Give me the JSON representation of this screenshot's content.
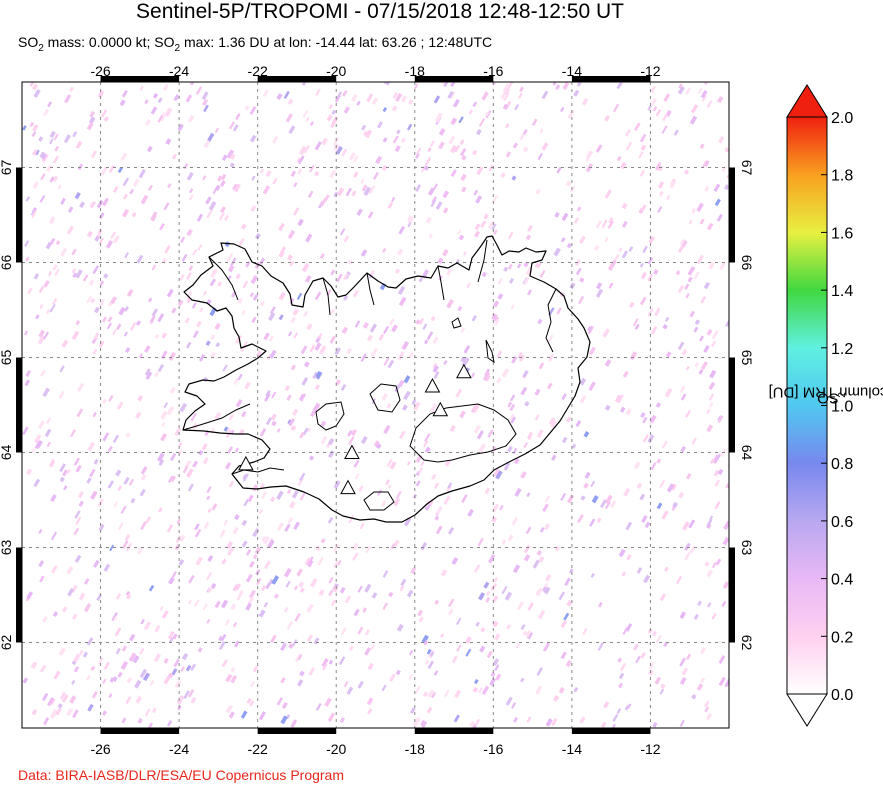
{
  "header": {
    "title": "Sentinel-5P/TROPOMI - 07/15/2018 12:48-12:50 UT",
    "subtitle_parts": [
      "SO",
      "2",
      " mass: 0.0000 kt; SO",
      "2",
      " max: 1.36 DU at lon: -14.44 lat: 63.26 ; 12:48UTC"
    ]
  },
  "map": {
    "lon_range": [
      -28,
      -10
    ],
    "lat_range": [
      61.1,
      67.9
    ],
    "lon_ticks": [
      "-26",
      "-24",
      "-22",
      "-20",
      "-18",
      "-16",
      "-14",
      "-12"
    ],
    "lon_tick_values": [
      -26,
      -24,
      -22,
      -20,
      -18,
      -16,
      -14,
      -12
    ],
    "lat_ticks": [
      "62",
      "63",
      "64",
      "65",
      "66",
      "67"
    ],
    "lat_tick_values": [
      62,
      63,
      64,
      65,
      66,
      67
    ],
    "grid": true,
    "grid_style": "dashed",
    "volcanoes": [
      {
        "lon": -22.3,
        "lat": 63.88
      },
      {
        "lon": -19.6,
        "lat": 64.0
      },
      {
        "lon": -19.7,
        "lat": 63.63
      },
      {
        "lon": -17.55,
        "lat": 64.7
      },
      {
        "lon": -17.35,
        "lat": 64.45
      },
      {
        "lon": -16.75,
        "lat": 64.85
      }
    ],
    "colors": {
      "coastline": "#000000",
      "grid": "#888888",
      "frame": "#000000"
    }
  },
  "colorbar": {
    "label_parts": [
      "SO",
      "2",
      " column TRM [DU]"
    ],
    "ticks": [
      "0.0",
      "0.2",
      "0.4",
      "0.6",
      "0.8",
      "1.0",
      "1.2",
      "1.4",
      "1.6",
      "1.8",
      "2.0"
    ],
    "tick_values": [
      0,
      0.2,
      0.4,
      0.6,
      0.8,
      1.0,
      1.2,
      1.4,
      1.6,
      1.8,
      2.0
    ],
    "range": [
      0,
      2.0
    ],
    "colors": [
      "#ffffff",
      "#ffd0f0",
      "#e8b8f5",
      "#b8a8f0",
      "#7888ee",
      "#50c8f0",
      "#60f0e0",
      "#40d840",
      "#e8f040",
      "#f8a020",
      "#f02010"
    ]
  },
  "credit": "Data: BIRA-IASB/DLR/ESA/EU Copernicus Program"
}
